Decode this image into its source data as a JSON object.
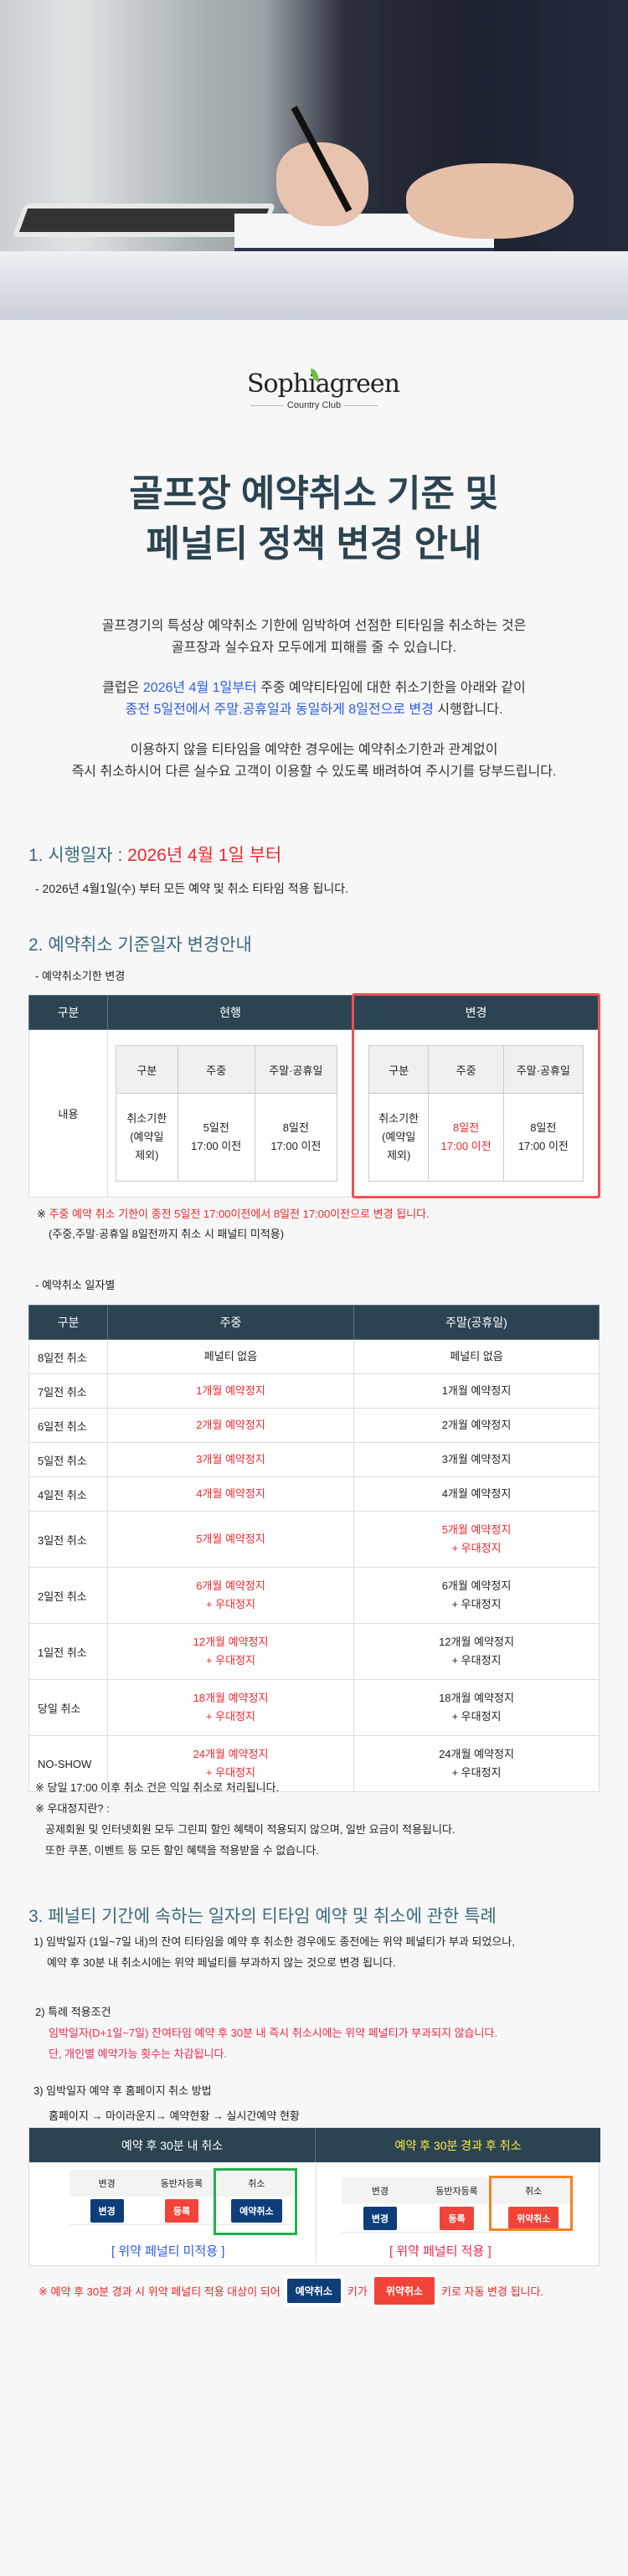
{
  "logo": {
    "name": "Sophiagreen",
    "sub": "Country Club"
  },
  "title": [
    "골프장 예약취소 기준 및",
    "페널티 정책 변경 안내"
  ],
  "intro": {
    "p1": [
      "골프경기의 특성상 예약취소 기한에 임박하여 선점한 티타임을 취소하는 것은",
      "골프장과  실수요자 모두에게 피해를 줄 수 있습니다."
    ],
    "p2a": "클럽은 ",
    "p2b": "2026년 4월 1일부터",
    "p2c": " 주중 예약티타임에 대한 취소기한을 아래와 같이",
    "p2d": "종전 5일전에서 주말.공휴일과 동일하게 8일전으로 변경",
    "p2e": " 시행합니다.",
    "p3": [
      "이용하지 않을 티타임을 예약한 경우에는 예약취소기한과 관계없이",
      "즉시 취소하시어 다른 실수요 고객이 이용할 수 있도록 배려하여 주시기를 당부드립니다."
    ]
  },
  "s1": {
    "heading": "1. 시행일자 : ",
    "heading_red": "2026년 4월 1일 부터",
    "line": "- 2026년 4월1일(수) 부터 모든 예약 및 취소 티타임 적용 됩니다."
  },
  "s2": {
    "heading": "2. 예약취소 기준일자 변경안내",
    "sub1": "- 예약취소기한 변경",
    "t1": {
      "headers": [
        "구분",
        "현행",
        "변경"
      ],
      "row_label": "내용",
      "inner_headers": [
        "구분",
        "주중",
        "주말·공휴일"
      ],
      "current": [
        "취소기한\n(예약일\n제외)",
        "5일전\n17:00 이전",
        "8일전\n17:00 이전"
      ],
      "changed": [
        "취소기한\n(예약일\n제외)",
        "8일전\n17:00 이전",
        "8일전\n17:00 이전"
      ]
    },
    "note1_mark": "※ ",
    "note1": "주중 예약 취소 기한이 종전 5일전 17:00이전에서 8일전 17:00이전으로 변경 됩니다.",
    "note2": "(주중,주말·공휴일 8일전까지 취소 시 패널티 미적용)",
    "sub2": "- 예약취소 일자별",
    "t2": {
      "headers": [
        "구분",
        "주중",
        "주말(공휴일)"
      ],
      "rows": [
        {
          "label": "8일전 취소",
          "weekday": [
            "페널티 없음"
          ],
          "weekend": [
            "페널티 없음"
          ],
          "wd_red": false,
          "we_red": false
        },
        {
          "label": "7일전 취소",
          "weekday": [
            "1개월 예약정지"
          ],
          "weekend": [
            "1개월 예약정지"
          ],
          "wd_red": true,
          "we_red": false
        },
        {
          "label": "6일전 취소",
          "weekday": [
            "2개월 예약정지"
          ],
          "weekend": [
            "2개월 예약정지"
          ],
          "wd_red": true,
          "we_red": false
        },
        {
          "label": "5일전 취소",
          "weekday": [
            "3개월 예약정지"
          ],
          "weekend": [
            "3개월 예약정지"
          ],
          "wd_red": true,
          "we_red": false
        },
        {
          "label": "4일전 취소",
          "weekday": [
            "4개월 예약정지"
          ],
          "weekend": [
            "4개월 예약정지"
          ],
          "wd_red": true,
          "we_red": false
        },
        {
          "label": "3일전 취소",
          "weekday": [
            "5개월 예약정지"
          ],
          "weekend": [
            "5개월 예약정지",
            "+ 우대정지"
          ],
          "wd_red": true,
          "we_red": true
        },
        {
          "label": "2일전 취소",
          "weekday": [
            "6개월 예약정지",
            "+ 우대정지"
          ],
          "weekend": [
            "6개월 예약정지",
            "+ 우대정지"
          ],
          "wd_red": true,
          "we_red": false
        },
        {
          "label": "1일전 취소",
          "weekday": [
            "12개월 예약정지",
            "+ 우대정지"
          ],
          "weekend": [
            "12개월 예약정지",
            "+ 우대정지"
          ],
          "wd_red": true,
          "we_red": false
        },
        {
          "label": "당일 취소",
          "weekday": [
            "18개월 예약정지",
            "+ 우대정지"
          ],
          "weekend": [
            "18개월 예약정지",
            "+ 우대정지"
          ],
          "wd_red": true,
          "we_red": false
        },
        {
          "label": "NO-SHOW",
          "weekday": [
            "24개월 예약정지",
            "+ 우대정지"
          ],
          "weekend": [
            "24개월 예약정지",
            "+ 우대정지"
          ],
          "wd_red": true,
          "we_red": false
        }
      ]
    },
    "notes": [
      "※ 당일 17:00 이후 취소 건은 익일 취소로 처리됩니다.",
      "※ 우대정지란? :",
      "공제회원 및 인터넷회원 모두 그린피 할인 혜택이 적용되지 않으며, 일반 요금이 적용됩니다.",
      "또한 쿠폰, 이벤트 등 모든 할인 혜택을 적용받을 수 없습니다."
    ]
  },
  "s3": {
    "heading": "3. 페널티 기간에 속하는 일자의 티타임 예약 및 취소에 관한 특례",
    "p1": [
      "1) 임박일자 (1일~7일 내)의 잔여 티타임을 예약 후 취소한 경우에도 종전에는 위약 페널티가 부과 되었으나,",
      "예약 후 30분 내 취소시에는 위약 페널티를 부과하지 않는 것으로 변경 됩니다."
    ],
    "p2": "2) 특례 적용조건",
    "p2_red": [
      "임박일자(D+1일~7일) 잔여타임 예약 후  30분 내 즉시 취소시에는 위약 페널티가 부과되지 않습니다.",
      "단, 개인별 예약가능 횟수는 차감됩니다."
    ],
    "p3": "3) 임박일자 예약 후 홈페이지 취소 방법",
    "path": "홈페이지 → 마이라운지→ 예약현황  → 실시간예약 현황",
    "box": {
      "left_header": "예약 후 30분 내 취소",
      "right_header": "예약 후 30분 경과 후 취소",
      "cols": [
        "변경",
        "동반자등록",
        "취소"
      ],
      "btn_change": "변경",
      "btn_register": "등록",
      "btn_cancel": "예약취소",
      "btn_penalty": "위약취소",
      "left_label": "[ 위약 페널티 미적용 ]",
      "right_label": "[ 위약 페널티 적용 ]"
    },
    "foot": {
      "a": "※  예약 후 30분 경과 시 위약 페널티 적용 대상이 되어",
      "btn1": "예약취소",
      "b": "키가",
      "btn2": "위약취소",
      "c": "키로  자동 변경 됩니다."
    }
  },
  "colors": {
    "header": "#2c4452",
    "red": "#f0262c",
    "blue": "#2b5ce6",
    "heading": "#3b6a80",
    "green": "#22b04b",
    "orange": "#f7811f"
  }
}
